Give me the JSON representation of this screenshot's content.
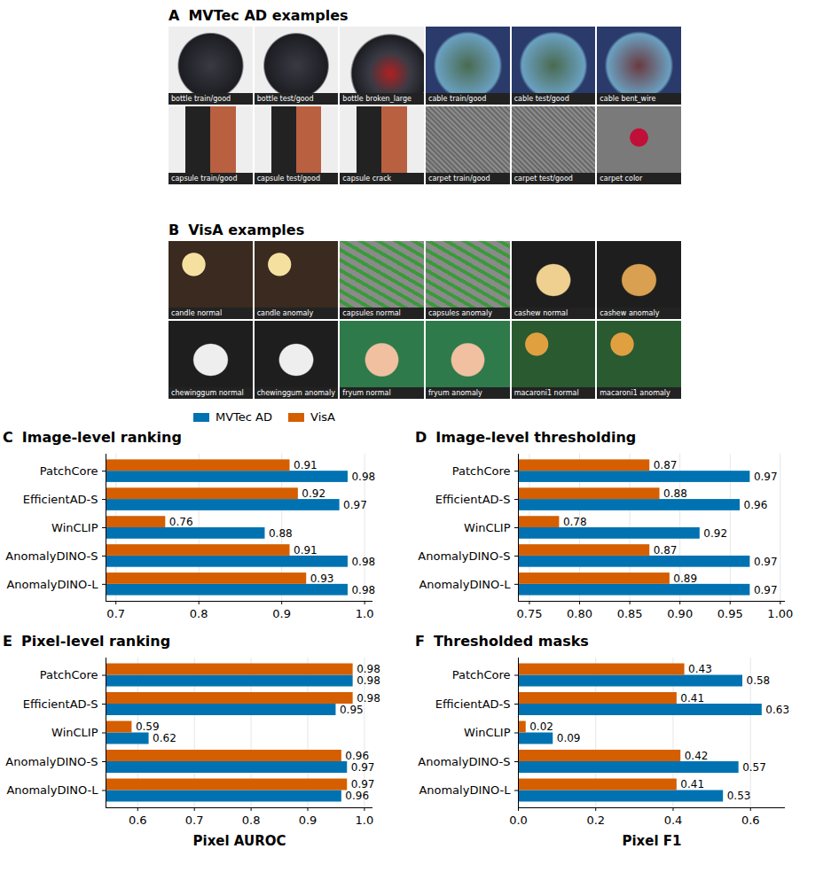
{
  "panels": [
    {
      "panel": "A",
      "title": "MVTec AD examples",
      "images": [
        "bottle train/good",
        "bottle test/good",
        "bottle broken_large",
        "cable train/good",
        "cable test/good",
        "cable bent_wire",
        "capsule train/good",
        "capsule test/good",
        "capsule crack",
        "carpet train/good",
        "carpet test/good",
        "carpet color"
      ]
    },
    {
      "panel": "B",
      "title": "VisA examples",
      "images": [
        "candle normal",
        "candle anomaly",
        "capsules normal",
        "capsules anomaly",
        "cashew normal",
        "cashew anomaly",
        "chewinggum normal",
        "chewinggum anomaly",
        "fryum normal",
        "fryum anomaly",
        "macaroni1 normal",
        "macaroni1 anomaly"
      ]
    }
  ],
  "chart_data": [
    {
      "panel": "C",
      "type": "bar",
      "title": "Image-level ranking",
      "orientation": "horizontal",
      "legend": "top",
      "categories": [
        "PatchCore",
        "EfficientAD-S",
        "WinCLIP",
        "AnomalyDINO-S",
        "AnomalyDINO-L"
      ],
      "series": [
        {
          "name": "MVTec AD",
          "color": "#0072b2",
          "values": [
            0.98,
            0.97,
            0.88,
            0.98,
            0.98
          ]
        },
        {
          "name": "VisA",
          "color": "#d55e00",
          "values": [
            0.91,
            0.92,
            0.76,
            0.91,
            0.93
          ]
        }
      ],
      "xlim": [
        0.688,
        1.01
      ],
      "xticks": [
        0.7,
        0.8,
        0.9,
        {
          "value": 1,
          "label": "1.0"
        }
      ],
      "grid": true,
      "data_labels": true
    },
    {
      "panel": "D",
      "type": "bar",
      "title": "Image-level thresholding",
      "orientation": "horizontal",
      "categories": [
        "PatchCore",
        "EfficientAD-S",
        "WinCLIP",
        "AnomalyDINO-S",
        "AnomalyDINO-L"
      ],
      "series": [
        {
          "name": "MVTec AD",
          "color": "#0072b2",
          "values": [
            0.97,
            0.96,
            0.92,
            0.97,
            0.97
          ]
        },
        {
          "name": "VisA",
          "color": "#d55e00",
          "values": [
            0.87,
            0.88,
            0.78,
            0.87,
            0.89
          ]
        }
      ],
      "xlim": [
        0.739,
        1.005
      ],
      "xticks": [
        0.75,
        {
          "value": 0.8,
          "label": "0.80"
        },
        0.85,
        {
          "value": 0.9,
          "label": "0.90"
        },
        0.95,
        {
          "value": 1,
          "label": "1.00"
        }
      ],
      "grid": true,
      "data_labels": true
    },
    {
      "panel": "E",
      "type": "bar",
      "title": "Pixel-level ranking",
      "orientation": "horizontal",
      "xlabel": "Pixel AUROC",
      "categories": [
        "PatchCore",
        "EfficientAD-S",
        "WinCLIP",
        "AnomalyDINO-S",
        "AnomalyDINO-L"
      ],
      "series": [
        {
          "name": "MVTec AD",
          "color": "#0072b2",
          "values": [
            0.98,
            0.95,
            0.62,
            0.97,
            0.96
          ]
        },
        {
          "name": "VisA",
          "color": "#d55e00",
          "values": [
            0.98,
            0.98,
            0.59,
            0.96,
            0.97
          ]
        }
      ],
      "xlim": [
        0.544,
        1.015
      ],
      "xticks": [
        0.6,
        0.7,
        0.8,
        0.9,
        {
          "value": 1,
          "label": "1.0"
        }
      ],
      "grid": true,
      "data_labels": true
    },
    {
      "panel": "F",
      "type": "bar",
      "title": "Thresholded masks",
      "orientation": "horizontal",
      "xlabel": "Pixel F1",
      "categories": [
        "PatchCore",
        "EfficientAD-S",
        "WinCLIP",
        "AnomalyDINO-S",
        "AnomalyDINO-L"
      ],
      "series": [
        {
          "name": "MVTec AD",
          "color": "#0072b2",
          "values": [
            0.58,
            0.63,
            0.09,
            0.57,
            0.53
          ]
        },
        {
          "name": "VisA",
          "color": "#d55e00",
          "values": [
            0.43,
            0.41,
            0.02,
            0.42,
            0.41
          ]
        }
      ],
      "xlim": [
        0,
        0.69
      ],
      "xticks": [
        {
          "value": 0,
          "label": "0.0"
        },
        0.2,
        0.4,
        0.6
      ],
      "grid": true,
      "data_labels": true
    }
  ]
}
